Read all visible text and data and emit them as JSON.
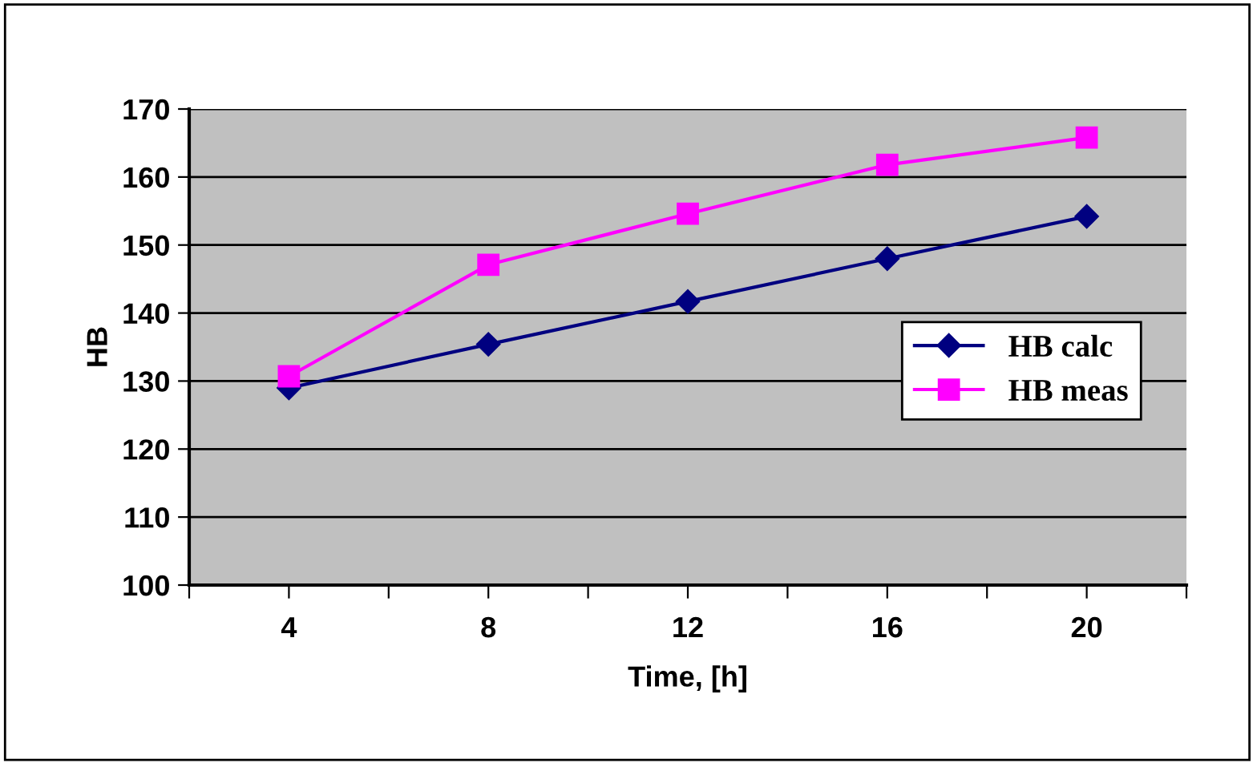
{
  "chart_data": {
    "type": "line",
    "xlabel": "Time, [h]",
    "ylabel": "HB",
    "categories": [
      "4",
      "8",
      "12",
      "16",
      "20"
    ],
    "series": [
      {
        "name": "HB calc",
        "color": "#000080",
        "marker": "diamond",
        "values": [
          129,
          135.4,
          141.7,
          148,
          154.2
        ]
      },
      {
        "name": "HB meas",
        "color": "#ff00ff",
        "marker": "square",
        "values": [
          130.7,
          147.1,
          154.6,
          161.8,
          165.8
        ]
      }
    ],
    "ylim": [
      100,
      170
    ],
    "yticks": [
      100,
      110,
      120,
      130,
      140,
      150,
      160,
      170
    ],
    "grid": "y",
    "legend": "right",
    "line_style": "solid"
  }
}
